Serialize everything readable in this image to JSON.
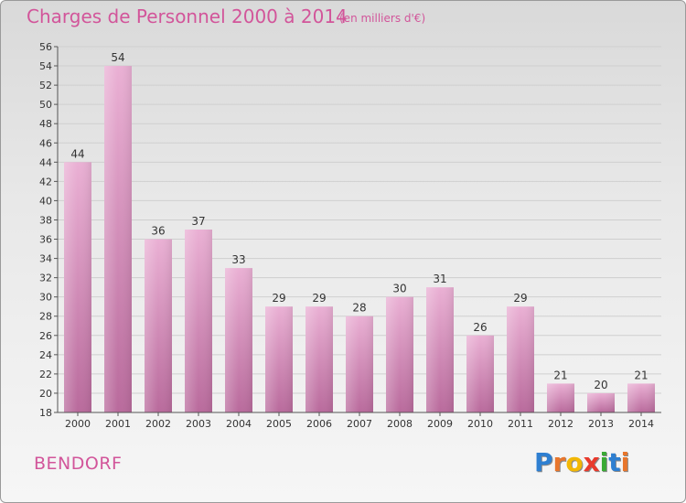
{
  "title": "Charges de Personnel 2000 à 2014",
  "subtitle": "(en milliers d'€)",
  "commune": "BENDORF",
  "logo": {
    "text": "Proxiti",
    "colors": [
      "#2e7fd1",
      "#e8762c",
      "#f2b705",
      "#e83a2c",
      "#3aaa35",
      "#2e7fd1",
      "#e8762c"
    ]
  },
  "colors": {
    "accent": "#d2559a",
    "bar_light": "#eab0d4",
    "bar_dark": "#b96a9c",
    "grid": "#cfcfcf",
    "axis_text": "#333333"
  },
  "chart_data": {
    "type": "bar",
    "categories": [
      "2000",
      "2001",
      "2002",
      "2003",
      "2004",
      "2005",
      "2006",
      "2007",
      "2008",
      "2009",
      "2010",
      "2011",
      "2012",
      "2013",
      "2014"
    ],
    "values": [
      44,
      54,
      36,
      37,
      33,
      29,
      29,
      28,
      30,
      31,
      26,
      29,
      21,
      20,
      21
    ],
    "ylim": [
      18,
      56
    ],
    "yticks": [
      18,
      20,
      22,
      24,
      26,
      28,
      30,
      32,
      34,
      36,
      38,
      40,
      42,
      44,
      46,
      48,
      50,
      52,
      54,
      56
    ],
    "grid": true,
    "data_labels": true
  }
}
